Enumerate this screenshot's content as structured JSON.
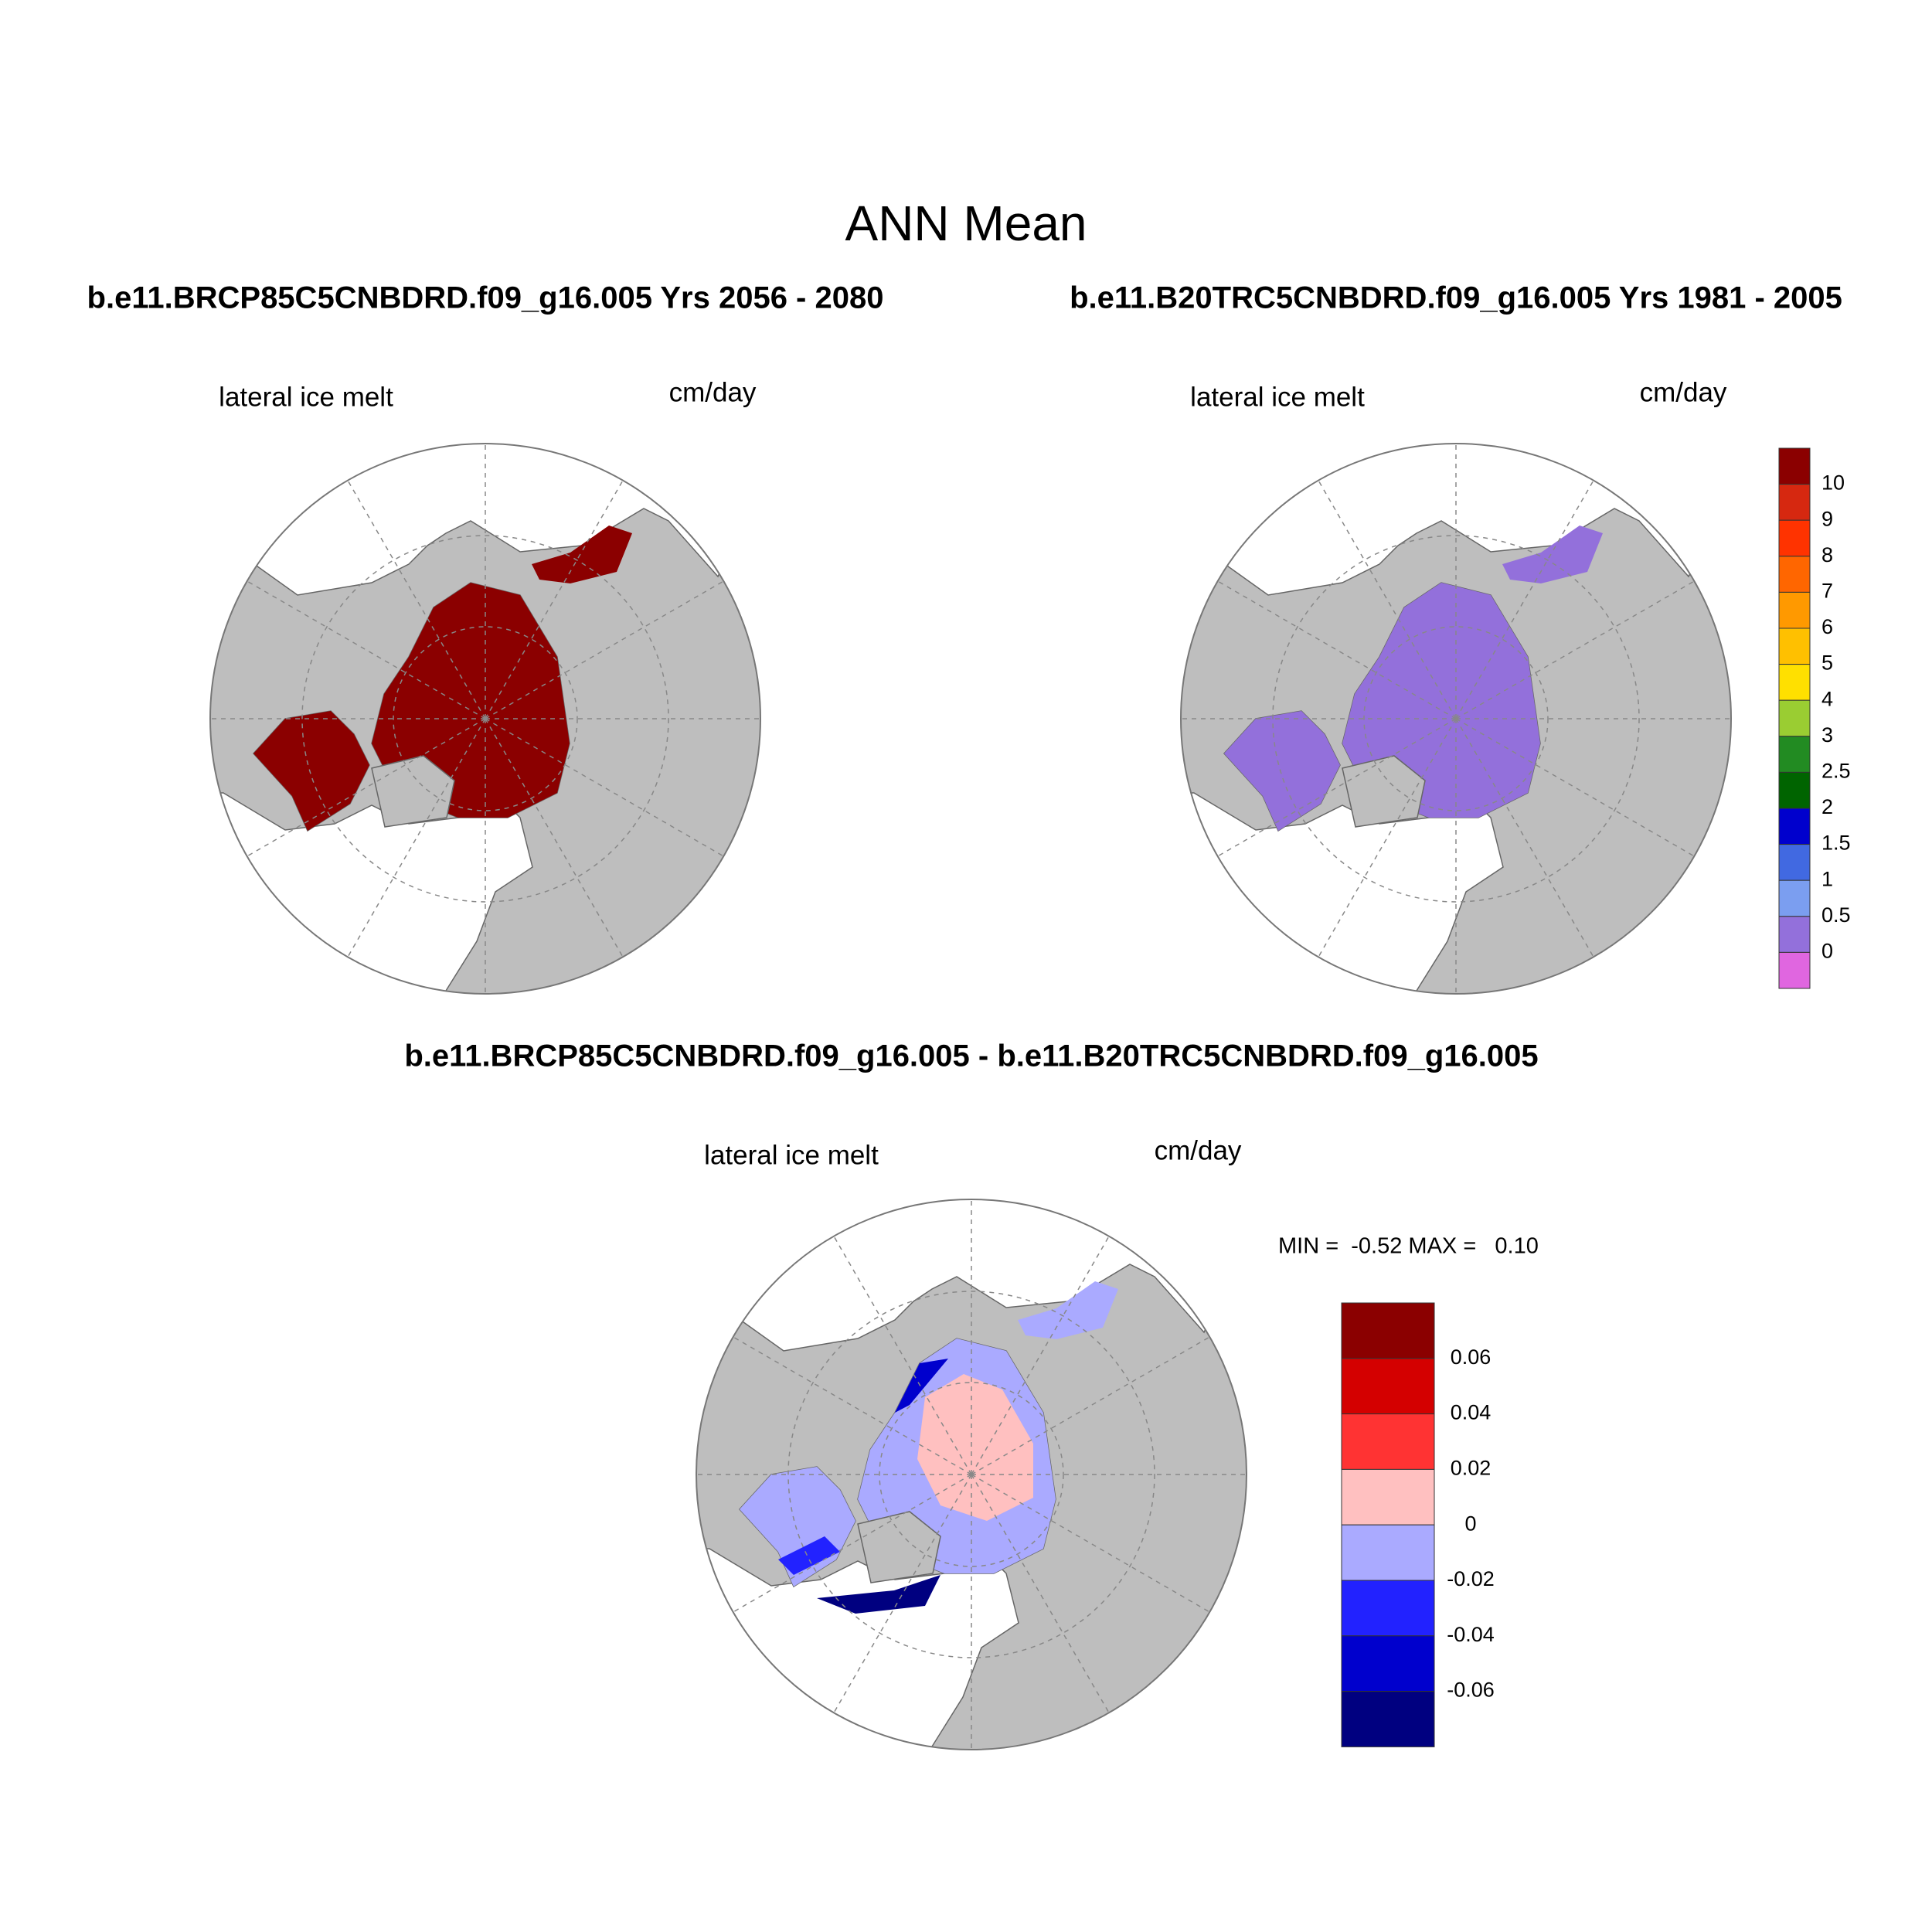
{
  "title": "ANN Mean",
  "panels": [
    {
      "subtitle": "b.e11.BRCP85C5CNBDRD.f09_g16.005  Yrs 2056 - 2080",
      "label": "lateral ice melt",
      "units": "cm/day"
    },
    {
      "subtitle": "b.e11.B20TRC5CNBDRD.f09_g16.005  Yrs 1981 - 2005",
      "label": "lateral ice melt",
      "units": "cm/day"
    },
    {
      "subtitle": "b.e11.BRCP85C5CNBDRD.f09_g16.005 - b.e11.B20TRC5CNBDRD.f09_g16.005",
      "label": "lateral ice melt",
      "units": "cm/day",
      "stats": "MIN =  -0.52 MAX =   0.10"
    }
  ],
  "colorbars": [
    {
      "colors": [
        "#8b0000",
        "#d62810",
        "#ff3300",
        "#ff6600",
        "#ff9900",
        "#ffc000",
        "#ffe000",
        "#9acd32",
        "#228b22",
        "#006400",
        "#0000cd",
        "#4169e1",
        "#7b9ef0",
        "#9370db",
        "#e066e0"
      ],
      "labels": [
        "10",
        "9",
        "8",
        "7",
        "6",
        "5",
        "4",
        "3",
        "2.5",
        "2",
        "1.5",
        "1",
        "0.5",
        "0"
      ]
    },
    {
      "colors": [
        "#8b0000",
        "#d40000",
        "#ff3333",
        "#ffc0c0",
        "#aaaaff",
        "#2222ff",
        "#0000cd",
        "#000080"
      ],
      "labels": [
        "0.06",
        "0.04",
        "0.02",
        "0",
        "-0.02",
        "-0.04",
        "-0.06"
      ]
    }
  ]
}
